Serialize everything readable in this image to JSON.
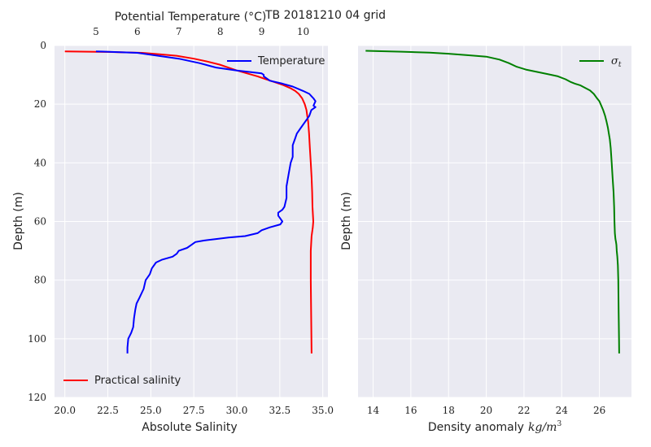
{
  "title": "TB 20181210 04 grid",
  "colors": {
    "panel_bg": "#EAEAF2",
    "grid": "#FFFFFF",
    "temperature": "#0000FF",
    "salinity": "#FF0000",
    "sigma": "#008000"
  },
  "chart_data": [
    {
      "type": "line",
      "ylabel": "Depth (m)",
      "ylim": [
        120,
        0
      ],
      "yticks": [
        0,
        20,
        40,
        60,
        80,
        100,
        120
      ],
      "xlabel_bottom": "Absolute Salinity",
      "xlim_bottom": [
        19.4,
        35.3
      ],
      "xticks_bottom": [
        "20.0",
        "22.5",
        "25.0",
        "27.5",
        "30.0",
        "32.5",
        "35.0"
      ],
      "xlabel_top": "Potential Temperature (°C)",
      "xlim_top": [
        4.0,
        10.6
      ],
      "xticks_top": [
        5,
        6,
        7,
        8,
        9,
        10
      ],
      "grid": true,
      "series": [
        {
          "name": "Temperature",
          "axis": "top",
          "legend_position": "upper-right",
          "points": [
            [
              5.0,
              2
            ],
            [
              6.0,
              2.5
            ],
            [
              6.5,
              3.5
            ],
            [
              7.0,
              4.5
            ],
            [
              7.5,
              6
            ],
            [
              7.9,
              7.5
            ],
            [
              8.4,
              8.5
            ],
            [
              8.7,
              9
            ],
            [
              9.0,
              9.5
            ],
            [
              9.05,
              10
            ],
            [
              9.05,
              10.5
            ],
            [
              9.2,
              12
            ],
            [
              9.5,
              13
            ],
            [
              9.75,
              14
            ],
            [
              10.0,
              15.5
            ],
            [
              10.15,
              16.5
            ],
            [
              10.25,
              18
            ],
            [
              10.3,
              19
            ],
            [
              10.25,
              20.5
            ],
            [
              10.3,
              21
            ],
            [
              10.2,
              22
            ],
            [
              10.15,
              24
            ],
            [
              10.05,
              26
            ],
            [
              9.95,
              28
            ],
            [
              9.85,
              30
            ],
            [
              9.8,
              32
            ],
            [
              9.75,
              34
            ],
            [
              9.75,
              36
            ],
            [
              9.75,
              38
            ],
            [
              9.7,
              40
            ],
            [
              9.65,
              44
            ],
            [
              9.6,
              48
            ],
            [
              9.6,
              52
            ],
            [
              9.55,
              55
            ],
            [
              9.5,
              56
            ],
            [
              9.4,
              57
            ],
            [
              9.4,
              58
            ],
            [
              9.45,
              59
            ],
            [
              9.5,
              60
            ],
            [
              9.45,
              61
            ],
            [
              9.2,
              62
            ],
            [
              9.0,
              63
            ],
            [
              8.9,
              64
            ],
            [
              8.6,
              65
            ],
            [
              8.2,
              65.5
            ],
            [
              7.9,
              66
            ],
            [
              7.6,
              66.5
            ],
            [
              7.4,
              67
            ],
            [
              7.3,
              68
            ],
            [
              7.2,
              69
            ],
            [
              7.0,
              70
            ],
            [
              6.95,
              71
            ],
            [
              6.85,
              72
            ],
            [
              6.6,
              73
            ],
            [
              6.45,
              74
            ],
            [
              6.35,
              76
            ],
            [
              6.3,
              78
            ],
            [
              6.2,
              80
            ],
            [
              6.15,
              83
            ],
            [
              6.05,
              86
            ],
            [
              5.98,
              88
            ],
            [
              5.95,
              90
            ],
            [
              5.92,
              93
            ],
            [
              5.9,
              96
            ],
            [
              5.85,
              98
            ],
            [
              5.78,
              100
            ],
            [
              5.76,
              103
            ],
            [
              5.76,
              105
            ]
          ]
        },
        {
          "name": "Practical salinity",
          "axis": "bottom",
          "legend_position": "lower-left",
          "points": [
            [
              20.0,
              2
            ],
            [
              22.5,
              2.2
            ],
            [
              24.5,
              2.5
            ],
            [
              25.5,
              3
            ],
            [
              26.5,
              3.5
            ],
            [
              27.5,
              4.5
            ],
            [
              28.3,
              5.5
            ],
            [
              29.0,
              6.5
            ],
            [
              29.5,
              7.5
            ],
            [
              30.0,
              8.5
            ],
            [
              30.6,
              9.5
            ],
            [
              31.2,
              10.5
            ],
            [
              31.7,
              11.5
            ],
            [
              32.2,
              12.5
            ],
            [
              32.7,
              13.5
            ],
            [
              33.1,
              14.5
            ],
            [
              33.4,
              15.5
            ],
            [
              33.6,
              16.5
            ],
            [
              33.8,
              18
            ],
            [
              33.95,
              20
            ],
            [
              34.05,
              22
            ],
            [
              34.1,
              24
            ],
            [
              34.15,
              26
            ],
            [
              34.2,
              30
            ],
            [
              34.25,
              35
            ],
            [
              34.3,
              40
            ],
            [
              34.35,
              45
            ],
            [
              34.38,
              50
            ],
            [
              34.4,
              55
            ],
            [
              34.45,
              60
            ],
            [
              34.42,
              62
            ],
            [
              34.35,
              65
            ],
            [
              34.3,
              70
            ],
            [
              34.3,
              80
            ],
            [
              34.32,
              90
            ],
            [
              34.34,
              100
            ],
            [
              34.35,
              105
            ]
          ]
        }
      ]
    },
    {
      "type": "line",
      "ylabel": "Depth (m)",
      "ylim": [
        120,
        0
      ],
      "yticks": [
        0,
        20,
        40,
        60,
        80,
        100,
        120
      ],
      "xlabel": "Density anomaly kg/m³",
      "xlabel_text": "Density anomaly",
      "xlabel_math": "kg/m",
      "xlabel_sup": "3",
      "xlim": [
        13.2,
        27.7
      ],
      "xticks": [
        14,
        16,
        18,
        20,
        22,
        24,
        26
      ],
      "grid": true,
      "series": [
        {
          "name": "σt",
          "name_base": "σ",
          "name_sub": "t",
          "legend_position": "upper-right",
          "points": [
            [
              13.6,
              1.8
            ],
            [
              15.5,
              2.1
            ],
            [
              17.0,
              2.4
            ],
            [
              18.0,
              2.8
            ],
            [
              19.0,
              3.3
            ],
            [
              20.0,
              3.8
            ],
            [
              20.7,
              4.8
            ],
            [
              21.2,
              6.0
            ],
            [
              21.6,
              7.2
            ],
            [
              22.1,
              8.2
            ],
            [
              22.7,
              9.0
            ],
            [
              23.3,
              9.8
            ],
            [
              23.8,
              10.5
            ],
            [
              24.2,
              11.5
            ],
            [
              24.5,
              12.5
            ],
            [
              24.7,
              13.0
            ],
            [
              25.0,
              13.6
            ],
            [
              25.2,
              14.3
            ],
            [
              25.5,
              15.3
            ],
            [
              25.7,
              16.5
            ],
            [
              25.85,
              17.8
            ],
            [
              26.0,
              19.0
            ],
            [
              26.1,
              20.5
            ],
            [
              26.2,
              22.0
            ],
            [
              26.3,
              24.0
            ],
            [
              26.38,
              26.0
            ],
            [
              26.45,
              28.0
            ],
            [
              26.5,
              30.0
            ],
            [
              26.55,
              32.0
            ],
            [
              26.6,
              35.0
            ],
            [
              26.65,
              40.0
            ],
            [
              26.7,
              45.0
            ],
            [
              26.75,
              50.0
            ],
            [
              26.78,
              55.0
            ],
            [
              26.8,
              60.0
            ],
            [
              26.82,
              64.0
            ],
            [
              26.85,
              66.0
            ],
            [
              26.88,
              67.0
            ],
            [
              26.9,
              68.0
            ],
            [
              26.92,
              70.0
            ],
            [
              26.95,
              72.0
            ],
            [
              26.98,
              75.0
            ],
            [
              27.0,
              80.0
            ],
            [
              27.02,
              90.0
            ],
            [
              27.04,
              100.0
            ],
            [
              27.05,
              105.0
            ]
          ]
        }
      ]
    }
  ]
}
